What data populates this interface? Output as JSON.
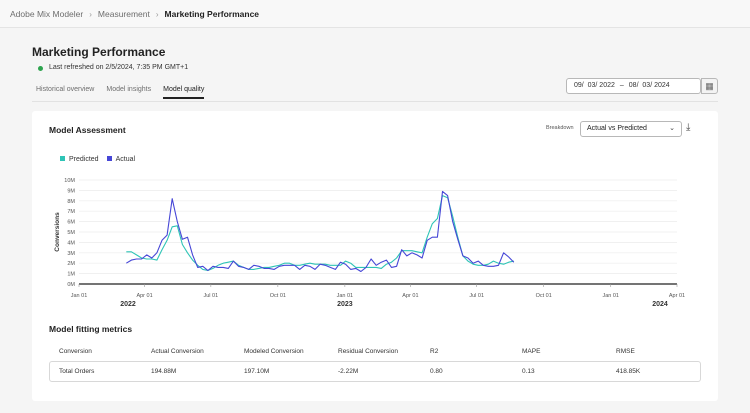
{
  "breadcrumb": {
    "items": [
      "Adobe Mix Modeler",
      "Measurement",
      "Marketing Performance"
    ]
  },
  "page": {
    "title": "Marketing Performance",
    "refreshed": "Last refreshed on 2/5/2024, 7:35 PM GMT+1",
    "status_color": "#2da44e"
  },
  "tabs": [
    {
      "label": "Historical overview"
    },
    {
      "label": "Model insights"
    },
    {
      "label": "Model quality",
      "active": true
    }
  ],
  "date_range": {
    "start": "09/  03/ 2022",
    "dash": "–",
    "end": "08/  03/ 2024",
    "icon": "calendar-icon"
  },
  "assessment": {
    "title": "Model Assessment",
    "breakdown_label": "Breakdown",
    "breakdown_value": "Actual vs Predicted",
    "download_icon": "download-icon"
  },
  "chart_data": {
    "type": "line",
    "ylabel": "Conversions",
    "ylim": [
      0,
      10000000
    ],
    "yticks": [
      "0M",
      "1M",
      "2M",
      "3M",
      "4M",
      "5M",
      "6M",
      "7M",
      "8M",
      "9M",
      "10M"
    ],
    "xlim": [
      "2022-01-01",
      "2024-04-01"
    ],
    "xticks": [
      {
        "date": "2022-01-01",
        "label": "Jan 01"
      },
      {
        "date": "2022-04-01",
        "label": "Apr 01"
      },
      {
        "date": "2022-07-01",
        "label": "Jul 01"
      },
      {
        "date": "2022-10-01",
        "label": "Oct 01"
      },
      {
        "date": "2023-01-01",
        "label": "Jan 01"
      },
      {
        "date": "2023-04-01",
        "label": "Apr 01"
      },
      {
        "date": "2023-07-01",
        "label": "Jul 01"
      },
      {
        "date": "2023-10-01",
        "label": "Oct 01"
      },
      {
        "date": "2024-01-01",
        "label": "Jan 01"
      },
      {
        "date": "2024-04-01",
        "label": "Apr 01"
      }
    ],
    "years": [
      {
        "date": "2022-01-01",
        "label": "2022"
      },
      {
        "date": "2023-01-01",
        "label": "2023"
      },
      {
        "date": "2024-04-01",
        "label": "2024"
      }
    ],
    "grid": true,
    "legend": "top-left",
    "x": [
      "2022-03-07",
      "2022-03-14",
      "2022-03-21",
      "2022-03-28",
      "2022-04-04",
      "2022-04-11",
      "2022-04-18",
      "2022-04-25",
      "2022-05-02",
      "2022-05-09",
      "2022-05-16",
      "2022-05-23",
      "2022-05-30",
      "2022-06-06",
      "2022-06-13",
      "2022-06-20",
      "2022-06-27",
      "2022-07-04",
      "2022-07-11",
      "2022-07-18",
      "2022-07-25",
      "2022-08-01",
      "2022-08-08",
      "2022-08-15",
      "2022-08-22",
      "2022-08-29",
      "2022-09-05",
      "2022-09-12",
      "2022-09-19",
      "2022-09-26",
      "2022-10-03",
      "2022-10-10",
      "2022-10-17",
      "2022-10-24",
      "2022-10-31",
      "2022-11-07",
      "2022-11-14",
      "2022-11-21",
      "2022-11-28",
      "2022-12-05",
      "2022-12-12",
      "2022-12-19",
      "2022-12-26",
      "2023-01-02",
      "2023-01-09",
      "2023-01-16",
      "2023-01-23",
      "2023-01-30",
      "2023-02-06",
      "2023-02-13",
      "2023-02-20",
      "2023-02-27",
      "2023-03-06",
      "2023-03-13",
      "2023-03-20",
      "2023-03-27",
      "2023-04-03",
      "2023-04-10",
      "2023-04-17",
      "2023-04-24",
      "2023-05-01",
      "2023-05-08",
      "2023-05-15",
      "2023-05-22",
      "2023-05-29",
      "2023-06-05",
      "2023-06-12",
      "2023-06-19",
      "2023-06-26",
      "2023-07-03",
      "2023-07-10",
      "2023-07-17",
      "2023-07-24",
      "2023-07-31",
      "2023-08-07",
      "2023-08-14",
      "2023-08-21"
    ],
    "series": [
      {
        "name": "Predicted",
        "color": "#2ec4b6",
        "values_millions": [
          3.1,
          3.1,
          2.8,
          2.5,
          2.4,
          2.4,
          2.3,
          3.3,
          4.2,
          5.5,
          5.6,
          3.8,
          3.0,
          2.3,
          1.8,
          1.4,
          1.3,
          1.5,
          1.8,
          2.0,
          2.1,
          2.2,
          1.8,
          1.6,
          1.4,
          1.4,
          1.5,
          1.6,
          1.6,
          1.7,
          1.8,
          2.0,
          2.0,
          1.8,
          1.8,
          1.9,
          2.0,
          1.9,
          1.9,
          1.9,
          1.8,
          1.8,
          1.8,
          2.2,
          2.0,
          1.6,
          1.6,
          1.6,
          1.6,
          1.6,
          1.5,
          1.9,
          2.1,
          2.5,
          3.2,
          3.2,
          3.2,
          3.1,
          3.0,
          4.5,
          5.8,
          6.3,
          8.5,
          8.3,
          6.5,
          4.5,
          2.7,
          2.2,
          1.9,
          1.8,
          1.8,
          1.9,
          2.2,
          2.0,
          1.9,
          2.1,
          2.2
        ]
      },
      {
        "name": "Actual",
        "color": "#4646d6",
        "values_millions": [
          2.0,
          2.3,
          2.4,
          2.4,
          2.8,
          2.5,
          3.0,
          4.2,
          4.7,
          8.2,
          6.0,
          4.3,
          4.5,
          2.8,
          1.6,
          1.7,
          1.3,
          1.7,
          1.6,
          1.6,
          1.5,
          2.2,
          1.7,
          1.6,
          1.4,
          1.8,
          1.7,
          1.5,
          1.5,
          1.4,
          1.7,
          1.8,
          1.8,
          1.8,
          1.4,
          1.8,
          1.7,
          1.4,
          1.9,
          1.8,
          1.6,
          1.4,
          2.1,
          1.9,
          1.4,
          1.5,
          1.2,
          1.6,
          2.4,
          1.8,
          2.1,
          2.3,
          1.6,
          1.7,
          3.3,
          2.7,
          3.0,
          2.8,
          2.5,
          4.2,
          4.5,
          4.5,
          8.9,
          8.5,
          6.0,
          4.3,
          2.7,
          2.5,
          2.0,
          2.2,
          1.8,
          1.7,
          1.7,
          1.8,
          3.0,
          2.6,
          2.1
        ]
      }
    ]
  },
  "metrics": {
    "title": "Model fitting metrics",
    "columns": [
      "Conversion",
      "Actual Conversion",
      "Modeled Conversion",
      "Residual Conversion",
      "R2",
      "MAPE",
      "RMSE"
    ],
    "rows": [
      [
        "Total Orders",
        "194.88M",
        "197.10M",
        "-2.22M",
        "0.80",
        "0.13",
        "418.85K"
      ]
    ]
  }
}
